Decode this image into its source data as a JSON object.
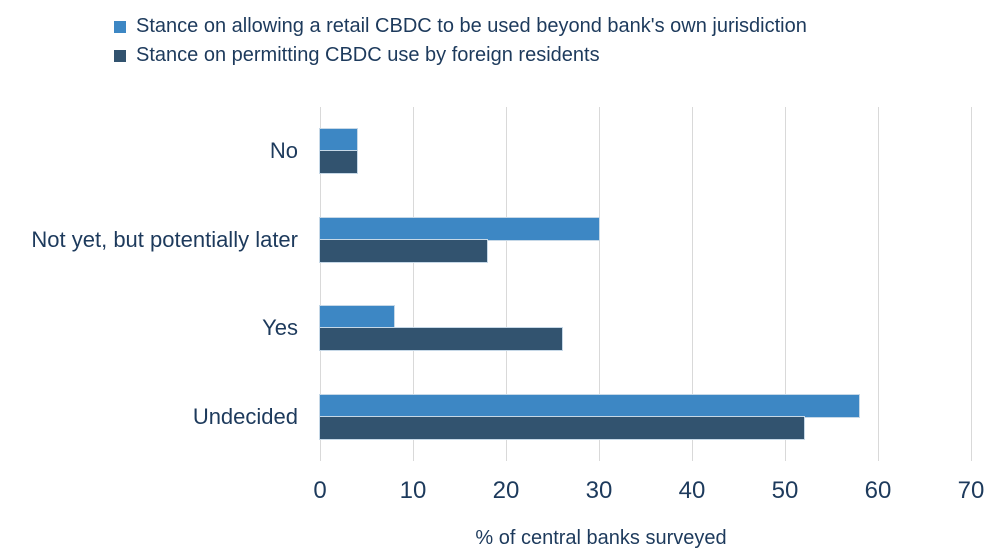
{
  "chart_data": {
    "type": "bar",
    "orientation": "horizontal",
    "title": "",
    "categories": [
      "No",
      "Not yet, but potentially later",
      "Yes",
      "Undecided"
    ],
    "series": [
      {
        "name": "Stance on allowing a retail CBDC to be used beyond bank's own jurisdiction",
        "color": "#3d87c4",
        "values": [
          4,
          30,
          8,
          58
        ]
      },
      {
        "name": "Stance on permitting CBDC use by foreign residents",
        "color": "#32536f",
        "values": [
          4,
          18,
          26,
          52
        ]
      }
    ],
    "xlabel": "% of central banks surveyed",
    "ylabel": "",
    "xlim": [
      0,
      70
    ],
    "xticks": [
      0,
      10,
      20,
      30,
      40,
      50,
      60,
      70
    ],
    "grid": "vertical",
    "legend_position": "top-left"
  },
  "colors": {
    "text": "#1d3a5c",
    "grid": "#d9d9d9",
    "background": "#ffffff",
    "bar_outline": "#c6d8e7"
  }
}
